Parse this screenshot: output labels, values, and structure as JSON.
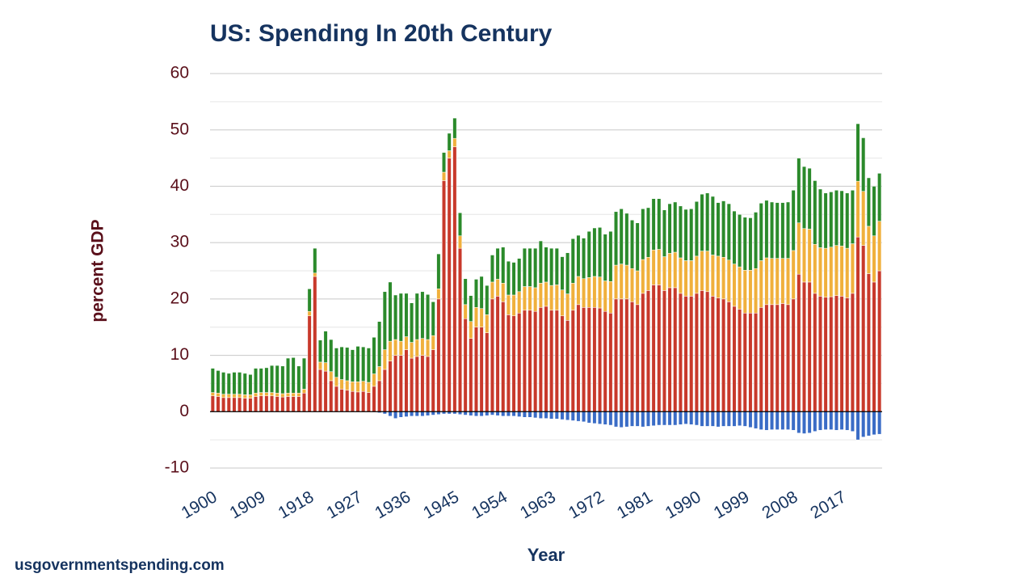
{
  "chart_data": {
    "type": "stacked_bar",
    "title": "US: Spending In 20th Century",
    "x_label": "Year",
    "y_label": "percent GDP",
    "source": "usgovernmentspending.com",
    "x": [
      1900,
      1901,
      1902,
      1903,
      1904,
      1905,
      1906,
      1907,
      1908,
      1909,
      1910,
      1911,
      1912,
      1913,
      1914,
      1915,
      1916,
      1917,
      1918,
      1919,
      1920,
      1921,
      1922,
      1923,
      1924,
      1925,
      1926,
      1927,
      1928,
      1929,
      1930,
      1931,
      1932,
      1933,
      1934,
      1935,
      1936,
      1937,
      1938,
      1939,
      1940,
      1941,
      1942,
      1943,
      1944,
      1945,
      1946,
      1947,
      1948,
      1949,
      1950,
      1951,
      1952,
      1953,
      1954,
      1955,
      1956,
      1957,
      1958,
      1959,
      1960,
      1961,
      1962,
      1963,
      1964,
      1965,
      1966,
      1967,
      1968,
      1969,
      1970,
      1971,
      1972,
      1973,
      1974,
      1975,
      1976,
      1977,
      1978,
      1979,
      1980,
      1981,
      1982,
      1983,
      1984,
      1985,
      1986,
      1987,
      1988,
      1989,
      1990,
      1991,
      1992,
      1993,
      1994,
      1995,
      1996,
      1997,
      1998,
      1999,
      2000,
      2001,
      2002,
      2003,
      2004,
      2005,
      2006,
      2007,
      2008,
      2009,
      2010,
      2011,
      2012,
      2013,
      2014,
      2015,
      2016,
      2017,
      2018,
      2019,
      2020,
      2021,
      2022,
      2023,
      2024
    ],
    "series": [
      {
        "color": "#c8392b",
        "values": [
          2.8,
          2.7,
          2.5,
          2.5,
          2.5,
          2.5,
          2.4,
          2.4,
          2.7,
          2.8,
          2.8,
          2.8,
          2.7,
          2.6,
          2.7,
          2.7,
          2.7,
          3.3,
          17,
          24,
          7.5,
          7.2,
          5.5,
          4.5,
          4.0,
          3.8,
          3.6,
          3.5,
          3.6,
          3.4,
          4.5,
          5.5,
          7.5,
          9.0,
          10.0,
          10.0,
          11.0,
          9.5,
          9.8,
          10.0,
          9.8,
          11,
          20,
          41,
          45,
          47,
          29,
          16.5,
          13,
          15,
          15,
          14,
          20,
          20.5,
          19.5,
          17.2,
          17,
          17.5,
          18,
          18,
          17.8,
          18.5,
          18.7,
          18,
          18,
          17,
          16.2,
          18,
          19,
          18.5,
          18.5,
          18.5,
          18.4,
          17.8,
          17.5,
          20,
          20,
          20,
          19.5,
          19,
          21,
          21.5,
          22.5,
          22.5,
          21.5,
          22,
          22,
          21,
          20.5,
          20.5,
          21,
          21.5,
          21.3,
          20.5,
          20.2,
          20,
          19.5,
          18.7,
          18.2,
          17.5,
          17.5,
          17.5,
          18.5,
          19,
          19,
          19,
          19.2,
          19,
          20,
          24.4,
          23,
          23,
          21,
          20.5,
          20.3,
          20.4,
          20.6,
          20.5,
          20.2,
          21,
          31,
          29.5,
          24.5,
          23,
          25
        ]
      },
      {
        "color": "#f0b03c",
        "values": [
          0.6,
          0.6,
          0.6,
          0.6,
          0.6,
          0.6,
          0.6,
          0.6,
          0.6,
          0.6,
          0.6,
          0.6,
          0.6,
          0.6,
          0.6,
          0.6,
          0.6,
          0.7,
          0.8,
          0.6,
          1.3,
          1.5,
          1.6,
          1.6,
          1.7,
          1.7,
          1.7,
          1.8,
          1.8,
          1.8,
          2.2,
          2.5,
          3.5,
          3.5,
          2.8,
          2.5,
          2.3,
          2.8,
          3.0,
          3.0,
          3.0,
          2.5,
          1.8,
          1.5,
          1.3,
          1.5,
          2.2,
          2.5,
          3.0,
          3.5,
          3.3,
          3.2,
          3.0,
          3.0,
          3.3,
          3.5,
          3.7,
          3.8,
          4.2,
          4.2,
          4.2,
          4.3,
          4.3,
          4.4,
          4.5,
          4.6,
          4.7,
          4.8,
          5.0,
          5.1,
          5.3,
          5.5,
          5.5,
          5.4,
          5.6,
          6.0,
          6.2,
          6.0,
          5.9,
          6.0,
          6.0,
          5.9,
          6.2,
          6.3,
          6.0,
          6.1,
          6.3,
          6.3,
          6.3,
          6.3,
          6.6,
          7.0,
          7.2,
          7.3,
          7.4,
          7.4,
          7.4,
          7.5,
          7.5,
          7.6,
          7.6,
          7.9,
          8.3,
          8.3,
          8.2,
          8.2,
          8.0,
          8.2,
          8.6,
          9.1,
          9.5,
          9.4,
          8.7,
          8.6,
          8.7,
          8.8,
          8.9,
          8.9,
          8.8,
          8.8,
          9.9,
          9.6,
          8.4,
          8.2,
          8.8
        ]
      },
      {
        "color": "#2b8a2b",
        "values": [
          4.3,
          4.0,
          3.9,
          3.7,
          3.9,
          3.9,
          3.8,
          3.6,
          4.4,
          4.3,
          4.4,
          4.8,
          4.9,
          4.9,
          6.2,
          6.3,
          4.8,
          5.5,
          4.0,
          4.4,
          3.9,
          5.6,
          5.7,
          5.2,
          5.8,
          5.9,
          5.7,
          6.3,
          6.1,
          6.1,
          6.5,
          8.0,
          10.3,
          10.5,
          7.9,
          8.5,
          7.7,
          7.0,
          8.2,
          8.3,
          8.0,
          6.0,
          6.2,
          3.5,
          3.1,
          3.6,
          4.1,
          4.6,
          4.6,
          5.0,
          5.7,
          5.2,
          4.8,
          5.5,
          6.4,
          6.0,
          5.8,
          5.9,
          6.8,
          6.8,
          7.0,
          7.5,
          6.2,
          6.6,
          6.5,
          5.9,
          7.3,
          7.9,
          7.3,
          7.2,
          8.2,
          8.6,
          8.8,
          8.3,
          8.9,
          9.5,
          9.8,
          9.2,
          8.6,
          8.5,
          9.0,
          8.8,
          9.1,
          9.0,
          8.3,
          8.8,
          8.9,
          9.2,
          9.1,
          9.2,
          9.7,
          10.1,
          10.3,
          10.4,
          9.5,
          10.0,
          10.0,
          9.4,
          9.3,
          9.4,
          9.3,
          10.0,
          10.2,
          10.2,
          10.0,
          9.9,
          9.9,
          10.0,
          10.7,
          11.5,
          11.0,
          10.8,
          11.3,
          10.4,
          9.8,
          9.8,
          9.8,
          9.8,
          9.8,
          9.5,
          10.2,
          9.5,
          8.6,
          8.8,
          8.5
        ]
      },
      {
        "color": "#3a6cc6",
        "values": [
          0,
          0,
          0,
          0,
          0,
          0,
          0,
          0,
          0,
          0,
          0,
          0,
          0,
          0,
          0,
          0,
          0,
          0,
          0,
          0,
          0,
          0,
          0,
          0,
          0,
          0,
          0,
          0,
          0,
          0,
          -0.1,
          -0.2,
          -0.4,
          -0.8,
          -1.2,
          -1.0,
          -0.9,
          -0.8,
          -0.8,
          -0.8,
          -0.7,
          -0.6,
          -0.5,
          -0.4,
          -0.4,
          -0.4,
          -0.5,
          -0.6,
          -0.7,
          -0.8,
          -0.8,
          -0.7,
          -0.6,
          -0.7,
          -0.8,
          -0.8,
          -0.8,
          -0.9,
          -1.0,
          -1.0,
          -1.1,
          -1.2,
          -1.2,
          -1.3,
          -1.3,
          -1.4,
          -1.5,
          -1.6,
          -1.7,
          -1.8,
          -2.0,
          -2.1,
          -2.2,
          -2.3,
          -2.4,
          -2.7,
          -2.8,
          -2.7,
          -2.6,
          -2.6,
          -2.7,
          -2.6,
          -2.5,
          -2.4,
          -2.4,
          -2.4,
          -2.4,
          -2.3,
          -2.2,
          -2.3,
          -2.4,
          -2.6,
          -2.6,
          -2.6,
          -2.7,
          -2.6,
          -2.6,
          -2.6,
          -2.5,
          -2.6,
          -2.8,
          -3.0,
          -3.2,
          -3.3,
          -3.2,
          -3.2,
          -3.2,
          -3.2,
          -3.3,
          -3.8,
          -3.9,
          -3.8,
          -3.5,
          -3.3,
          -3.2,
          -3.2,
          -3.3,
          -3.2,
          -3.3,
          -3.5,
          -5.0,
          -4.5,
          -4.3,
          -4.1,
          -4.0
        ]
      }
    ],
    "xlim": [
      1899.5,
      2024.5
    ],
    "xticks": [
      1900,
      1909,
      1918,
      1927,
      1936,
      1945,
      1954,
      1963,
      1972,
      1981,
      1990,
      1999,
      2008,
      2017
    ],
    "ylim": [
      -10,
      60
    ],
    "yticks": [
      -10,
      0,
      10,
      20,
      30,
      40,
      50,
      60
    ],
    "yminor": [
      -5,
      5,
      15,
      25,
      35,
      45,
      55
    ],
    "grid": true
  }
}
